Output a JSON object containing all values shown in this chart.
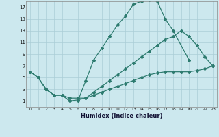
{
  "xlabel": "Humidex (Indice chaleur)",
  "bg_color": "#cce8ee",
  "grid_color": "#aacdd6",
  "line_color": "#2d7b6f",
  "xlim": [
    -0.5,
    23.5
  ],
  "ylim": [
    0,
    18
  ],
  "xticks": [
    0,
    1,
    2,
    3,
    4,
    5,
    6,
    7,
    8,
    9,
    10,
    11,
    12,
    13,
    14,
    15,
    16,
    17,
    18,
    19,
    20,
    21,
    22,
    23
  ],
  "yticks": [
    1,
    3,
    5,
    7,
    9,
    11,
    13,
    15,
    17
  ],
  "line1_x": [
    0,
    1,
    2,
    3,
    4,
    5,
    6,
    7,
    8,
    9,
    10,
    11,
    12,
    13,
    14,
    15,
    16,
    17,
    18,
    20
  ],
  "line1_y": [
    6.0,
    5.0,
    3.0,
    2.0,
    2.0,
    1.0,
    1.0,
    4.5,
    8.0,
    10.0,
    12.0,
    14.0,
    15.5,
    17.5,
    18.0,
    18.2,
    18.0,
    15.0,
    13.0,
    8.0
  ],
  "line2_x": [
    0,
    1,
    2,
    3,
    4,
    5,
    6,
    7,
    8,
    9,
    10,
    11,
    12,
    13,
    14,
    15,
    16,
    17,
    18,
    19,
    20,
    21,
    22,
    23
  ],
  "line2_y": [
    6.0,
    5.0,
    3.0,
    2.0,
    2.0,
    1.0,
    1.2,
    1.5,
    2.5,
    3.5,
    4.5,
    5.5,
    6.5,
    7.5,
    8.5,
    9.5,
    10.5,
    11.5,
    12.0,
    13.0,
    12.0,
    10.5,
    8.5,
    7.0
  ],
  "line3_x": [
    0,
    1,
    2,
    3,
    4,
    5,
    6,
    7,
    8,
    9,
    10,
    11,
    12,
    13,
    14,
    15,
    16,
    17,
    18,
    19,
    20,
    21,
    22,
    23
  ],
  "line3_y": [
    6.0,
    5.0,
    3.0,
    2.0,
    2.0,
    1.5,
    1.5,
    1.5,
    2.0,
    2.5,
    3.0,
    3.5,
    4.0,
    4.5,
    5.0,
    5.5,
    5.8,
    6.0,
    6.0,
    6.0,
    6.0,
    6.2,
    6.5,
    7.0
  ]
}
